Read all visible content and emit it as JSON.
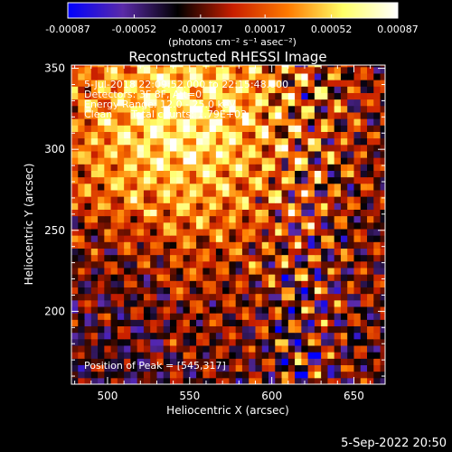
{
  "chart_data": {
    "type": "heatmap",
    "title": "Reconstructed RHESSI Image",
    "xlabel": "Heliocentric X (arcsec)",
    "ylabel": "Heliocentric Y (arcsec)",
    "xlim": [
      478,
      669
    ],
    "ylim": [
      155,
      352
    ],
    "xticks": [
      500,
      550,
      600,
      650
    ],
    "yticks": [
      200,
      250,
      300,
      350
    ],
    "colorbar": {
      "range": [
        -0.00087,
        0.00087
      ],
      "ticks": [
        -0.00087,
        -0.00052,
        -0.00017,
        0.00017,
        0.00052,
        0.00087
      ],
      "tick_labels": [
        "-0.00087",
        "-0.00052",
        "-0.00017",
        "0.00017",
        "0.00052",
        "0.00087"
      ],
      "label": "(photons cm⁻² s⁻¹ asec⁻²)",
      "colors": [
        "#0000ff",
        "#5a2aa8",
        "#000000",
        "#c81e00",
        "#ff7a00",
        "#ffff66",
        "#ffffff"
      ]
    },
    "annotations": [
      "5-Jul-2018 22:09:52.000 to 22:15:48.000",
      "Detectors: 3F 8F, Att=0",
      "Energy Range: 12.0 - 25.0 keV",
      "Clean      Total counts: 1.79E+03"
    ],
    "peak_label": "Position of Peak = [545,317]",
    "peak": [
      545,
      317
    ]
  },
  "footer": {
    "date": "5-Sep-2022 20:50"
  }
}
